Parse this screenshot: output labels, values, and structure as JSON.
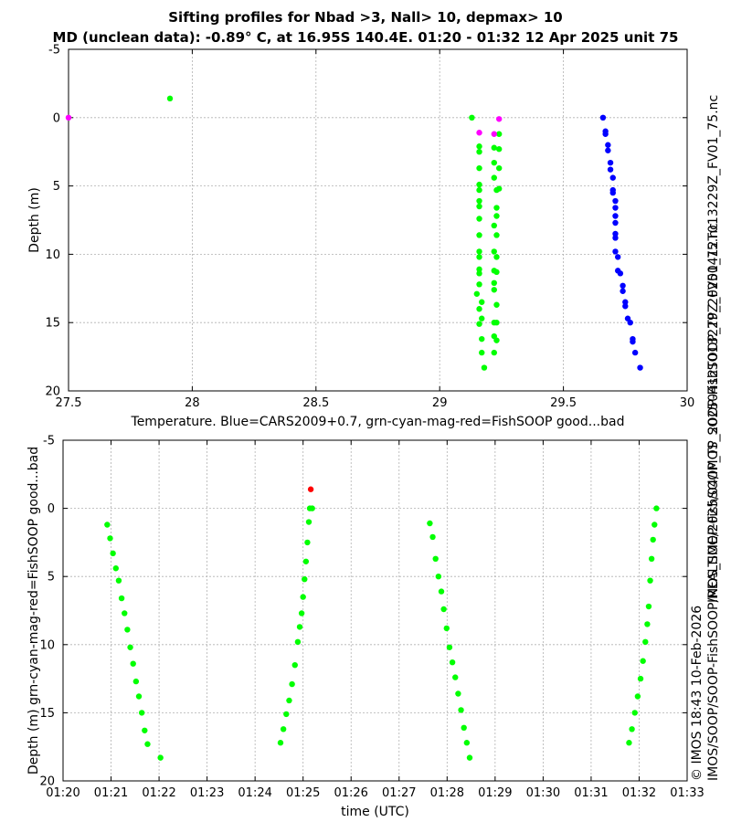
{
  "title": {
    "line1": "Sifting profiles for Nbad >3, Nall> 10, depmax> 10",
    "line2": "MD (unclean data): -0.89° C, at 16.95S 140.4E. 01:20 - 01:32 12 Apr 2025 unit 75"
  },
  "side_label": "IMOS_SOOP-FishSOOP_TP_20250412T013229Z_FV01_75.nc",
  "side_footer": {
    "line1": "© IMOS 18:43 10-Feb-2026",
    "line2": "IMOS/SOOP/SOOP-FishSOOP/REALTIME/2025/04/IMOS_SOOP-FishSOOP_TP_20250412T013229Z_FV01_75.nc"
  },
  "colors": {
    "green": "#00ff00",
    "magenta": "#ff00ff",
    "blue": "#0000ff",
    "red": "#ff0000",
    "grid": "#b0b0b0"
  },
  "chart_data": [
    {
      "type": "scatter",
      "xlabel": "Temperature. Blue=CARS2009+0.7, grn-cyan-mag-red=FishSOOP good...bad",
      "ylabel": "Depth (m)",
      "xlim": [
        27.5,
        30
      ],
      "ylim": [
        -5,
        20
      ],
      "y_inverted": true,
      "xticks": [
        27.5,
        28,
        28.5,
        29,
        29.5,
        30
      ],
      "xtick_labels": [
        "27.5",
        "28",
        "28.5",
        "29",
        "29.5",
        "30"
      ],
      "yticks": [
        -5,
        0,
        5,
        10,
        15,
        20
      ],
      "ytick_labels": [
        "-5",
        "0",
        "5",
        "10",
        "15",
        "20"
      ],
      "grid": true,
      "series": [
        {
          "name": "FishSOOP good",
          "color": "green",
          "points": [
            [
              27.91,
              -1.4
            ],
            [
              29.13,
              0.0
            ],
            [
              29.16,
              2.1
            ],
            [
              29.16,
              2.5
            ],
            [
              29.16,
              3.7
            ],
            [
              29.16,
              4.9
            ],
            [
              29.16,
              5.3
            ],
            [
              29.16,
              6.1
            ],
            [
              29.16,
              6.5
            ],
            [
              29.16,
              7.4
            ],
            [
              29.16,
              8.6
            ],
            [
              29.16,
              9.8
            ],
            [
              29.16,
              10.2
            ],
            [
              29.16,
              11.1
            ],
            [
              29.16,
              11.4
            ],
            [
              29.16,
              12.2
            ],
            [
              29.15,
              12.9
            ],
            [
              29.17,
              13.5
            ],
            [
              29.16,
              14.0
            ],
            [
              29.17,
              14.7
            ],
            [
              29.16,
              15.1
            ],
            [
              29.17,
              16.2
            ],
            [
              29.17,
              17.2
            ],
            [
              29.18,
              18.3
            ],
            [
              29.22,
              2.2
            ],
            [
              29.24,
              2.3
            ],
            [
              29.22,
              3.3
            ],
            [
              29.24,
              3.7
            ],
            [
              29.22,
              4.4
            ],
            [
              29.23,
              5.3
            ],
            [
              29.24,
              5.2
            ],
            [
              29.23,
              6.6
            ],
            [
              29.23,
              7.2
            ],
            [
              29.22,
              7.9
            ],
            [
              29.23,
              8.6
            ],
            [
              29.22,
              9.8
            ],
            [
              29.23,
              10.2
            ],
            [
              29.22,
              11.2
            ],
            [
              29.23,
              11.3
            ],
            [
              29.22,
              12.1
            ],
            [
              29.22,
              12.6
            ],
            [
              29.23,
              13.7
            ],
            [
              29.22,
              15.0
            ],
            [
              29.23,
              15.0
            ],
            [
              29.22,
              16.0
            ],
            [
              29.23,
              16.3
            ],
            [
              29.22,
              17.2
            ],
            [
              29.24,
              1.2
            ]
          ]
        },
        {
          "name": "FishSOOP bad",
          "color": "magenta",
          "points": [
            [
              27.5,
              0.0
            ],
            [
              29.16,
              1.1
            ],
            [
              29.22,
              1.2
            ],
            [
              29.24,
              0.1
            ]
          ]
        },
        {
          "name": "CARS2009+0.7",
          "color": "blue",
          "points": [
            [
              29.66,
              0.0
            ],
            [
              29.67,
              1.0
            ],
            [
              29.67,
              1.2
            ],
            [
              29.68,
              2.0
            ],
            [
              29.68,
              2.4
            ],
            [
              29.69,
              3.3
            ],
            [
              29.69,
              3.8
            ],
            [
              29.7,
              4.4
            ],
            [
              29.7,
              5.3
            ],
            [
              29.7,
              5.5
            ],
            [
              29.71,
              6.1
            ],
            [
              29.71,
              6.6
            ],
            [
              29.71,
              7.2
            ],
            [
              29.71,
              7.7
            ],
            [
              29.71,
              8.5
            ],
            [
              29.71,
              8.8
            ],
            [
              29.71,
              9.8
            ],
            [
              29.72,
              10.2
            ],
            [
              29.72,
              11.2
            ],
            [
              29.73,
              11.4
            ],
            [
              29.74,
              12.3
            ],
            [
              29.74,
              12.7
            ],
            [
              29.75,
              13.5
            ],
            [
              29.75,
              13.8
            ],
            [
              29.76,
              14.7
            ],
            [
              29.77,
              15.0
            ],
            [
              29.78,
              16.2
            ],
            [
              29.78,
              16.4
            ],
            [
              29.79,
              17.2
            ],
            [
              29.81,
              18.3
            ]
          ]
        }
      ]
    },
    {
      "type": "scatter",
      "xlabel": "time (UTC)",
      "ylabel": "Depth (m) grn-cyan-mag-red=FishSOOP good...bad",
      "xlim": [
        0,
        13
      ],
      "ylim": [
        -5,
        20
      ],
      "y_inverted": true,
      "xticks": [
        0,
        1,
        2,
        3,
        4,
        5,
        6,
        7,
        8,
        9,
        10,
        11,
        12,
        13
      ],
      "xtick_labels": [
        "01:20",
        "01:21",
        "01:22",
        "01:23",
        "01:24",
        "01:25",
        "01:26",
        "01:27",
        "01:28",
        "01:29",
        "01:30",
        "01:31",
        "01:32",
        "01:33"
      ],
      "yticks": [
        -5,
        0,
        5,
        10,
        15,
        20
      ],
      "ytick_labels": [
        "-5",
        "0",
        "5",
        "10",
        "15",
        "20"
      ],
      "grid": true,
      "series": [
        {
          "name": "FishSOOP good",
          "color": "green",
          "points": [
            [
              0.92,
              1.2
            ],
            [
              0.98,
              2.2
            ],
            [
              1.04,
              3.3
            ],
            [
              1.1,
              4.4
            ],
            [
              1.16,
              5.3
            ],
            [
              1.22,
              6.6
            ],
            [
              1.28,
              7.7
            ],
            [
              1.34,
              8.9
            ],
            [
              1.4,
              10.2
            ],
            [
              1.46,
              11.4
            ],
            [
              1.52,
              12.7
            ],
            [
              1.58,
              13.8
            ],
            [
              1.64,
              15.0
            ],
            [
              1.7,
              16.3
            ],
            [
              1.76,
              17.3
            ],
            [
              2.03,
              18.3
            ],
            [
              4.53,
              17.2
            ],
            [
              4.59,
              16.2
            ],
            [
              4.65,
              15.1
            ],
            [
              4.71,
              14.1
            ],
            [
              4.77,
              12.9
            ],
            [
              4.83,
              11.5
            ],
            [
              4.89,
              9.8
            ],
            [
              4.93,
              8.7
            ],
            [
              4.97,
              7.7
            ],
            [
              5.0,
              6.5
            ],
            [
              5.03,
              5.2
            ],
            [
              5.06,
              3.9
            ],
            [
              5.09,
              2.5
            ],
            [
              5.12,
              1.0
            ],
            [
              5.14,
              0.0
            ],
            [
              5.19,
              0.0
            ],
            [
              7.64,
              1.1
            ],
            [
              7.7,
              2.1
            ],
            [
              7.76,
              3.7
            ],
            [
              7.82,
              5.0
            ],
            [
              7.88,
              6.1
            ],
            [
              7.93,
              7.4
            ],
            [
              7.99,
              8.8
            ],
            [
              8.05,
              10.2
            ],
            [
              8.11,
              11.3
            ],
            [
              8.17,
              12.4
            ],
            [
              8.23,
              13.6
            ],
            [
              8.29,
              14.8
            ],
            [
              8.35,
              16.1
            ],
            [
              8.41,
              17.2
            ],
            [
              8.47,
              18.3
            ],
            [
              11.79,
              17.2
            ],
            [
              11.85,
              16.2
            ],
            [
              11.91,
              15.0
            ],
            [
              11.97,
              13.8
            ],
            [
              12.03,
              12.5
            ],
            [
              12.08,
              11.2
            ],
            [
              12.13,
              9.8
            ],
            [
              12.17,
              8.5
            ],
            [
              12.2,
              7.2
            ],
            [
              12.23,
              5.3
            ],
            [
              12.26,
              3.7
            ],
            [
              12.29,
              2.3
            ],
            [
              12.32,
              1.2
            ],
            [
              12.36,
              0.0
            ]
          ]
        },
        {
          "name": "FishSOOP bad",
          "color": "red",
          "points": [
            [
              5.16,
              -1.4
            ]
          ]
        }
      ]
    }
  ]
}
